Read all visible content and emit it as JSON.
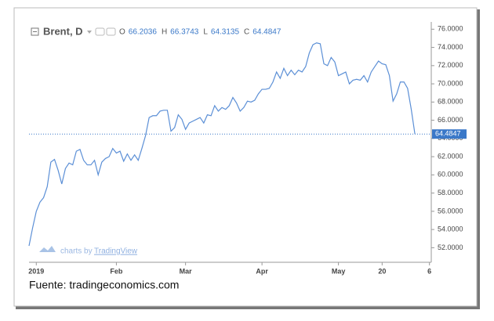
{
  "chart_data": {
    "type": "line",
    "symbol": "Brent, D",
    "ohlc": [
      {
        "label": "O",
        "value": "66.2036"
      },
      {
        "label": "H",
        "value": "66.3743"
      },
      {
        "label": "L",
        "value": "64.3135"
      },
      {
        "label": "C",
        "value": "64.4847"
      }
    ],
    "watermark": [
      "charts by",
      "TradingView"
    ],
    "source": "Fuente: tradingeconomics.com",
    "color": "#5b8fd6",
    "values": [
      52.2,
      54.2,
      56.0,
      57.0,
      57.5,
      58.7,
      61.4,
      61.7,
      60.5,
      59.0,
      60.7,
      61.3,
      61.1,
      62.6,
      62.8,
      61.6,
      61.1,
      61.1,
      61.6,
      60.0,
      61.4,
      61.8,
      62.0,
      62.9,
      62.4,
      62.6,
      61.5,
      62.3,
      61.6,
      62.2,
      61.6,
      62.9,
      64.3,
      66.3,
      66.5,
      66.5,
      67.0,
      67.1,
      67.1,
      64.8,
      65.2,
      66.6,
      66.1,
      65.0,
      65.7,
      65.9,
      66.1,
      66.3,
      65.7,
      66.6,
      66.5,
      67.6,
      67.0,
      67.4,
      67.2,
      67.6,
      68.5,
      67.9,
      67.0,
      67.4,
      68.1,
      68.0,
      68.2,
      68.9,
      69.4,
      69.4,
      69.5,
      70.2,
      71.3,
      70.6,
      71.7,
      70.9,
      71.5,
      71.0,
      71.5,
      71.3,
      71.9,
      73.4,
      74.3,
      74.5,
      74.4,
      72.2,
      72.0,
      72.9,
      72.4,
      70.9,
      71.1,
      71.3,
      70.0,
      70.4,
      70.5,
      70.4,
      70.9,
      70.2,
      71.3,
      71.9,
      72.5,
      72.2,
      72.1,
      70.9,
      68.1,
      68.9,
      70.2,
      70.2,
      69.5,
      67.2,
      64.4847
    ],
    "last_price": 64.4847,
    "xlim": [
      0,
      110.5
    ],
    "xticks": [
      {
        "value": 2,
        "label": "2019"
      },
      {
        "value": 24,
        "label": "Feb"
      },
      {
        "value": 43,
        "label": "Mar"
      },
      {
        "value": 64,
        "label": "Apr"
      },
      {
        "value": 85,
        "label": "May"
      },
      {
        "value": 97,
        "label": "20"
      },
      {
        "value": 110,
        "label": "6"
      }
    ],
    "ylim": [
      50.4,
      76.8
    ],
    "yticks": [
      {
        "value": 52,
        "label": "52.0000"
      },
      {
        "value": 54,
        "label": "54.0000"
      },
      {
        "value": 56,
        "label": "56.0000"
      },
      {
        "value": 58,
        "label": "58.0000"
      },
      {
        "value": 60,
        "label": "60.0000"
      },
      {
        "value": 62,
        "label": "62.0000"
      },
      {
        "value": 64,
        "label": "64.0000"
      },
      {
        "value": 66,
        "label": "66.0000"
      },
      {
        "value": 68,
        "label": "68.0000"
      },
      {
        "value": 70,
        "label": "70.0000"
      },
      {
        "value": 72,
        "label": "72.0000"
      },
      {
        "value": 74,
        "label": "74.0000"
      },
      {
        "value": 76,
        "label": "76.0000"
      }
    ]
  }
}
